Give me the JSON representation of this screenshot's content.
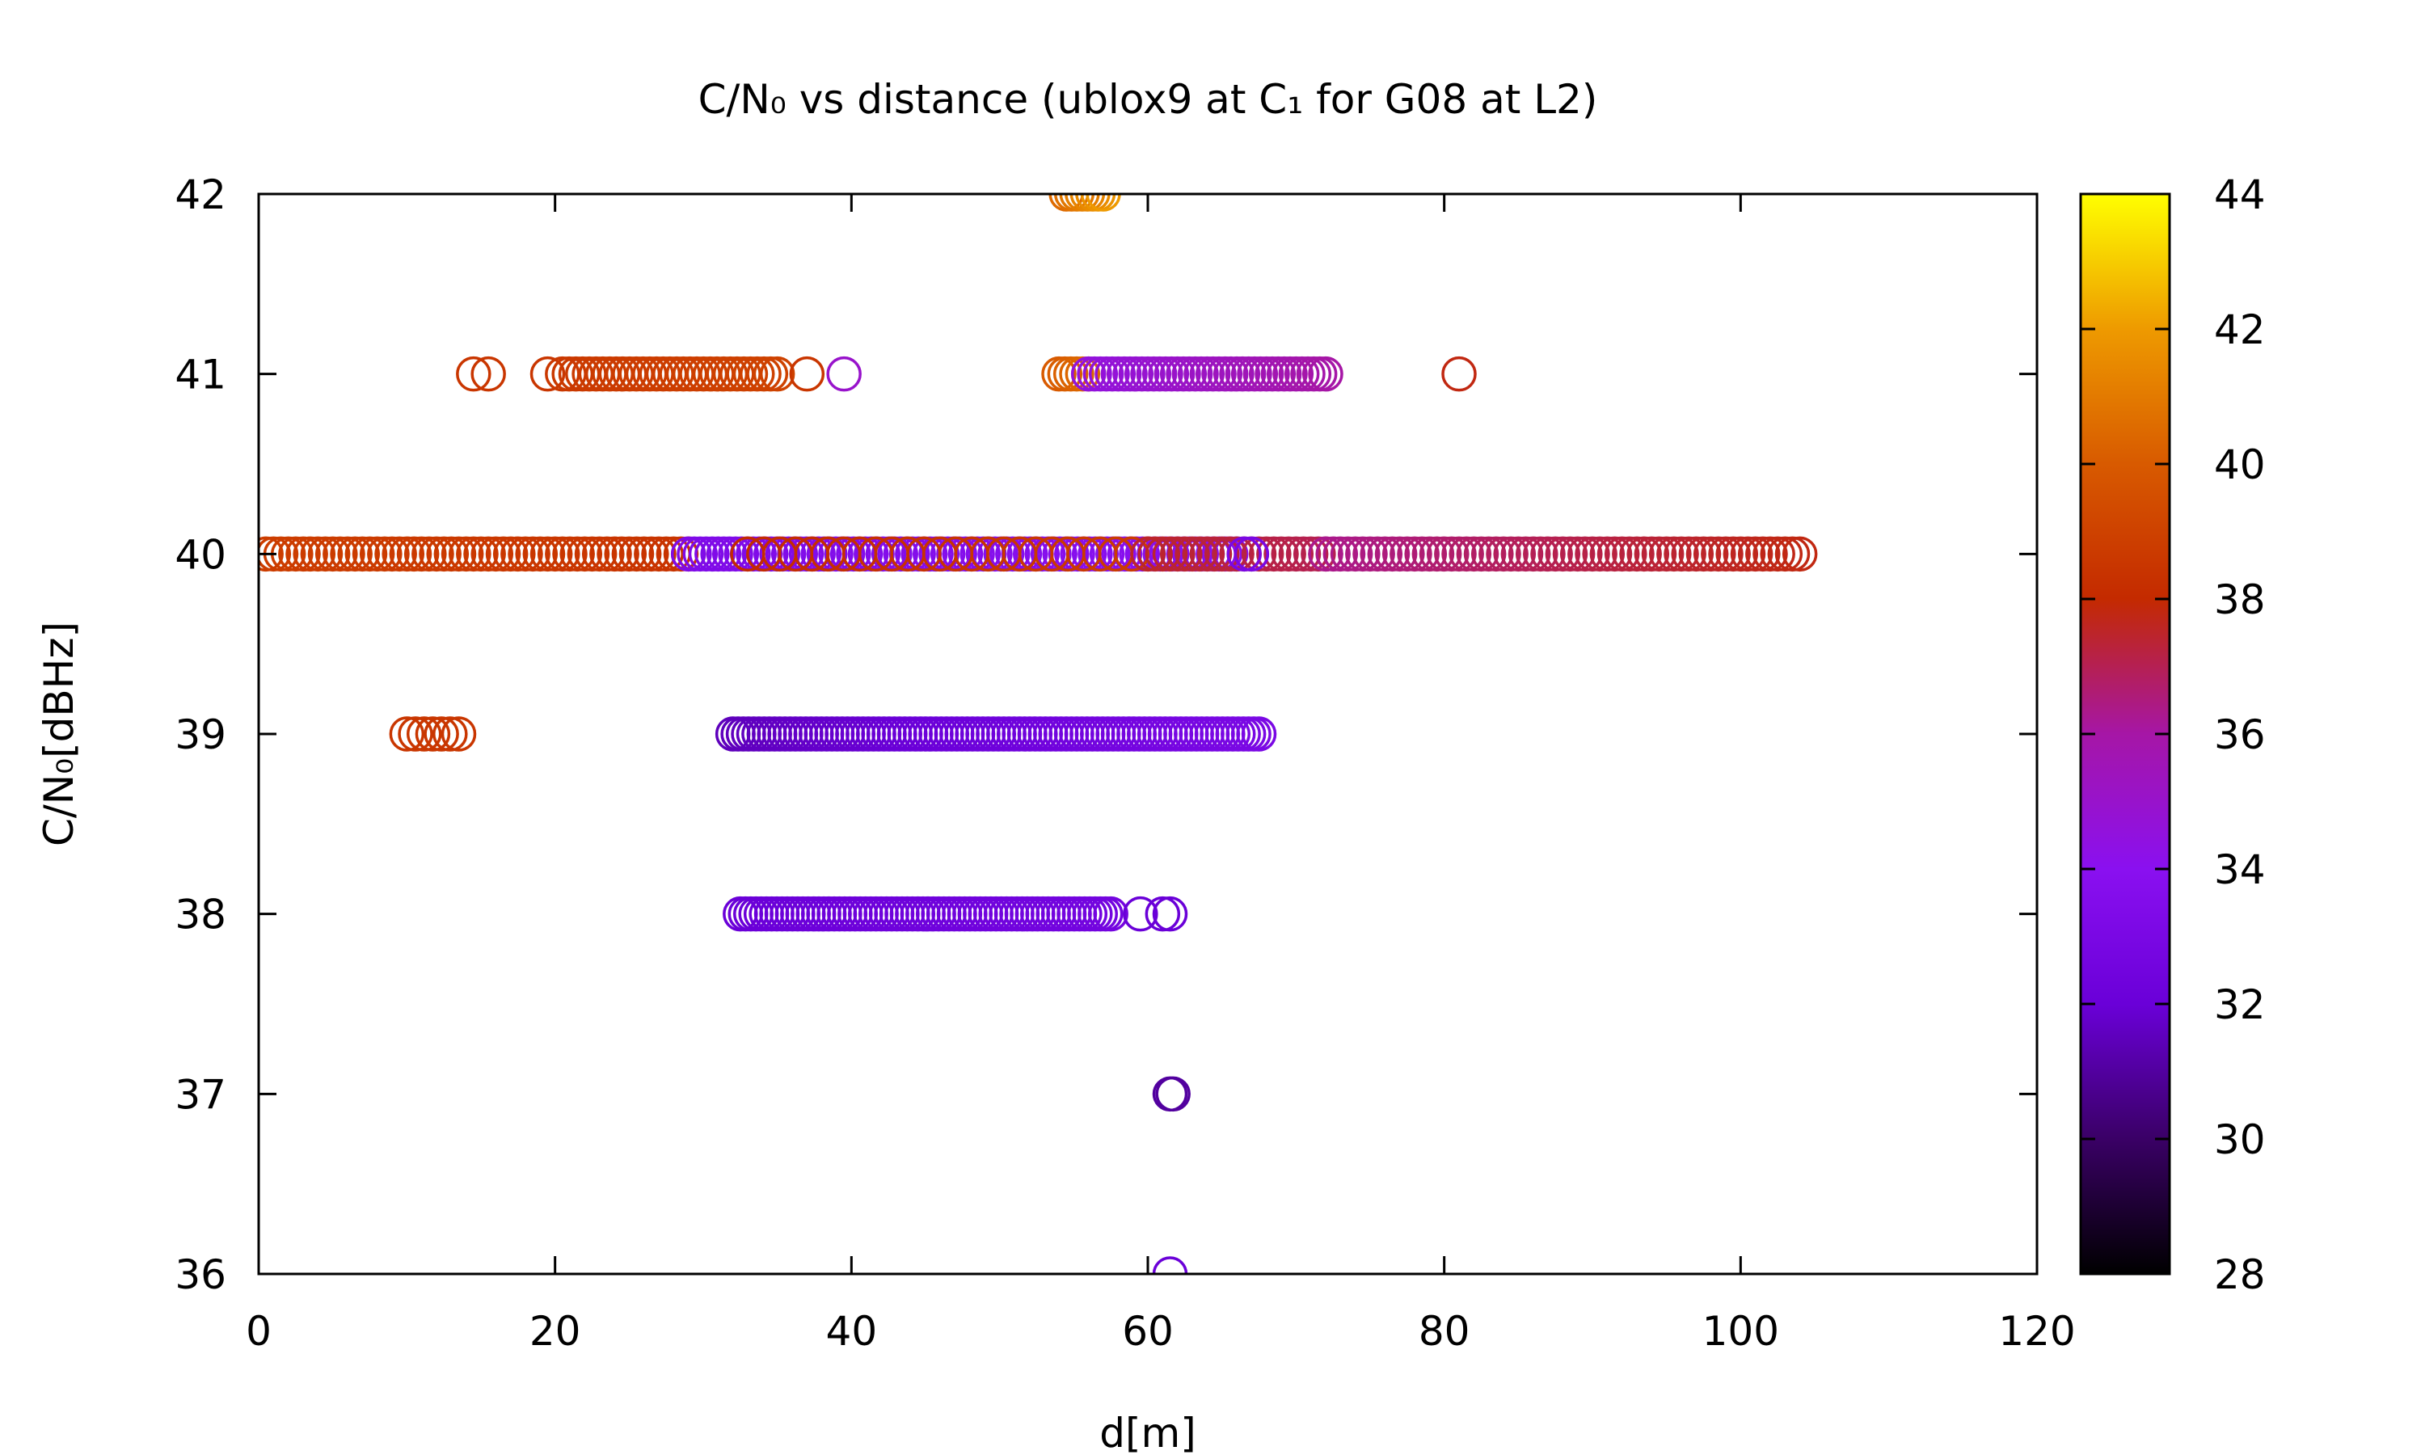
{
  "chart_data": {
    "type": "scatter",
    "title": "C/N₀ vs distance (ublox9 at C₁ for G08 at L2)",
    "xlabel": "d[m]",
    "ylabel": "C/N₀[dBHz]",
    "xlim": [
      0,
      120
    ],
    "ylim": [
      36,
      42
    ],
    "x_ticks": [
      "0",
      "20",
      "40",
      "60",
      "80",
      "100",
      "120"
    ],
    "y_ticks": [
      "36",
      "37",
      "38",
      "39",
      "40",
      "41",
      "42"
    ],
    "grid": false,
    "marker": "open-circle",
    "colorbar": {
      "range": [
        28,
        44
      ],
      "ticks": [
        "28",
        "30",
        "32",
        "34",
        "36",
        "38",
        "40",
        "42",
        "44"
      ],
      "palette": [
        "#000000",
        "#3a0066",
        "#6a00d8",
        "#8a10f0",
        "#a616a6",
        "#c42a00",
        "#d85a00",
        "#ee9a00",
        "#ffff00"
      ]
    },
    "groups": [
      {
        "y": 42,
        "x_from": 54.5,
        "x_to": 57,
        "step": 0.35,
        "c_from": 40.5,
        "c_to": 42
      },
      {
        "y": 41,
        "x": [
          14.5,
          15.5,
          19.5
        ],
        "c": 38.5
      },
      {
        "y": 41,
        "x_from": 20.5,
        "x_to": 35,
        "step": 0.45,
        "c_from": 38.6,
        "c_to": 39
      },
      {
        "y": 41,
        "x": [
          37
        ],
        "c": 38.5
      },
      {
        "y": 41,
        "x": [
          39.5
        ],
        "c": 35
      },
      {
        "y": 41,
        "x_from": 54,
        "x_to": 56,
        "step": 0.4,
        "c_from": 40,
        "c_to": 40.5
      },
      {
        "y": 41,
        "x_from": 56,
        "x_to": 72,
        "step": 0.4,
        "c_from": 34.5,
        "c_to": 36
      },
      {
        "y": 41,
        "x": [
          81
        ],
        "c": 37.8
      },
      {
        "y": 40,
        "x_from": 0.5,
        "x_to": 29,
        "step": 0.5,
        "c_from": 38.8,
        "c_to": 38.4
      },
      {
        "y": 40,
        "x_from": 29,
        "x_to": 66,
        "step": 0.4,
        "c_from": 33.3,
        "c_to": 34
      },
      {
        "y": 40,
        "x_from": 33,
        "x_to": 60,
        "step": 1.1,
        "c_from": 38,
        "c_to": 38.8
      },
      {
        "y": 40,
        "x_from": 60,
        "x_to": 72,
        "step": 0.5,
        "c_from": 37.5,
        "c_to": 37
      },
      {
        "y": 40,
        "x": [
          66.5,
          67
        ],
        "c": 33
      },
      {
        "y": 40,
        "x_from": 72,
        "x_to": 104,
        "step": 0.5,
        "c_from": 36.3,
        "c_to": 37.8
      },
      {
        "y": 39,
        "x_from": 10,
        "x_to": 13.5,
        "step": 0.6,
        "c_from": 38.5,
        "c_to": 38.5
      },
      {
        "y": 39,
        "x_from": 32,
        "x_to": 67.5,
        "step": 0.35,
        "c_from": 31.5,
        "c_to": 33
      },
      {
        "y": 38,
        "x_from": 32.5,
        "x_to": 57.5,
        "step": 0.35,
        "c_from": 32,
        "c_to": 32.6
      },
      {
        "y": 38,
        "x": [
          59.5,
          61,
          61.5
        ],
        "c": 32
      },
      {
        "y": 37,
        "x": [
          61.5,
          61.7
        ],
        "c": 31
      },
      {
        "y": 36,
        "x": [
          61.5
        ],
        "c": 32
      }
    ]
  }
}
